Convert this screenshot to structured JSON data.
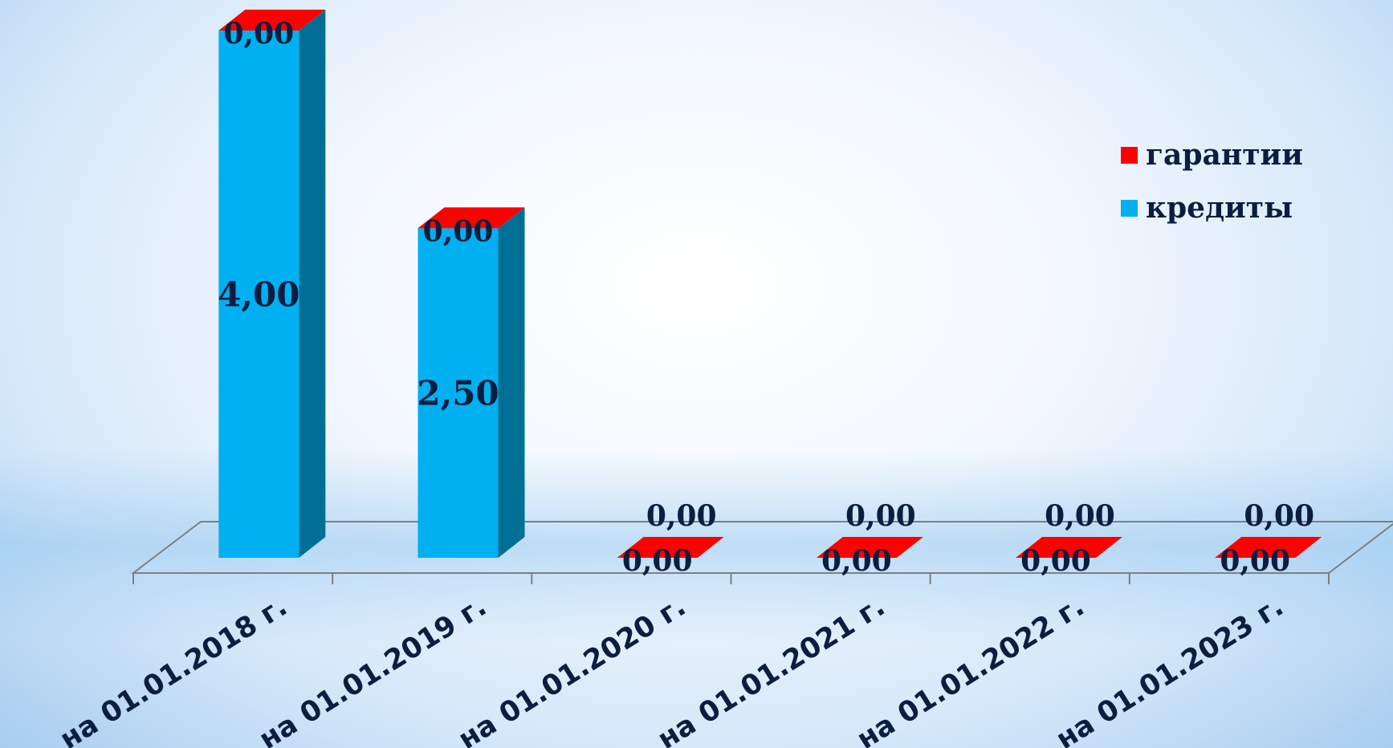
{
  "chart_data": {
    "type": "bar",
    "stacked": true,
    "three_d": true,
    "categories": [
      "на 01.01.2018 г.",
      "на 01.01.2019 г.",
      "на 01.01.2020 г.",
      "на 01.01.2021 г.",
      "на 01.01.2022 г.",
      "на 01.01.2023 г."
    ],
    "series": [
      {
        "name": "кредиты",
        "color": "#00b0f0",
        "side_color": "#006f95",
        "values": [
          4.0,
          2.5,
          0.0,
          0.0,
          0.0,
          0.0
        ],
        "labels": [
          "4,00",
          "2,50",
          "0,00",
          "0,00",
          "0,00",
          "0,00"
        ]
      },
      {
        "name": "гарантии",
        "color": "#ff0000",
        "side_color": "#b00000",
        "values": [
          0.0,
          0.0,
          0.0,
          0.0,
          0.0,
          0.0
        ],
        "labels": [
          "0,00",
          "0,00",
          "0,00",
          "0,00",
          "0,00",
          "0,00"
        ]
      }
    ],
    "legend": {
      "position": "right",
      "items": [
        {
          "name": "гарантии",
          "color": "#ff0000"
        },
        {
          "name": "кредиты",
          "color": "#00b0f0"
        }
      ]
    },
    "ylim": [
      0,
      4.0
    ],
    "grid": false,
    "label_color": "#0c1e40",
    "axis_color": "#7f7f7f"
  }
}
